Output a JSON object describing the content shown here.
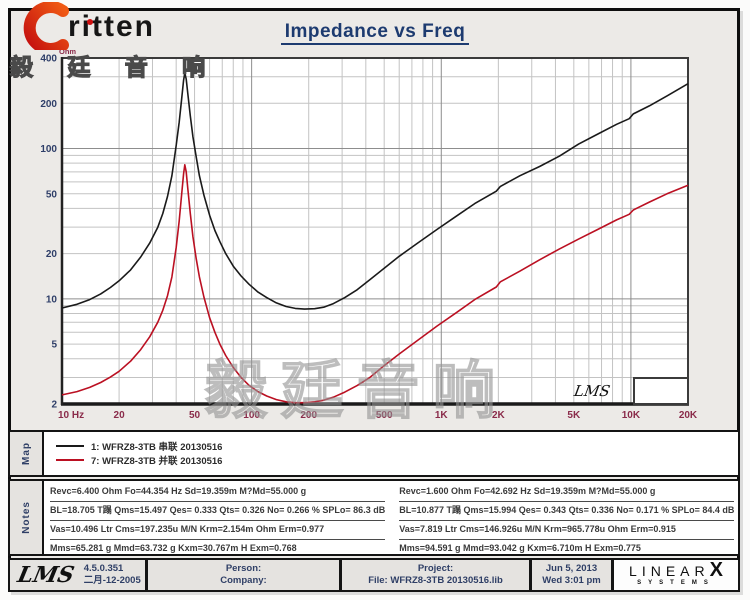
{
  "header": {
    "logo_text": "ritten",
    "logo_cjk": "毅 廷 音 响",
    "title": "Impedance vs Freq"
  },
  "watermark": "毅廷音响",
  "chart_data": {
    "type": "line",
    "x_scale": "log",
    "y_scale": "log",
    "xlim": [
      10,
      20000
    ],
    "ylim": [
      2,
      400
    ],
    "x_unit": "Hz",
    "y_unit": "Ohm",
    "grid": true,
    "inset_label": "LMS",
    "axis_colors": {
      "x": "#8a2b4a",
      "y": "#2e3e68"
    },
    "x_ticks": [
      {
        "f": 10,
        "label": "10 Hz"
      },
      {
        "f": 20,
        "label": "20"
      },
      {
        "f": 50,
        "label": "50"
      },
      {
        "f": 100,
        "label": "100"
      },
      {
        "f": 200,
        "label": "200"
      },
      {
        "f": 500,
        "label": "500"
      },
      {
        "f": 1000,
        "label": "1K"
      },
      {
        "f": 2000,
        "label": "2K"
      },
      {
        "f": 5000,
        "label": "5K"
      },
      {
        "f": 10000,
        "label": "10K"
      },
      {
        "f": 20000,
        "label": "20K"
      }
    ],
    "y_ticks": [
      {
        "v": 400,
        "label": "400"
      },
      {
        "v": 200,
        "label": "200"
      },
      {
        "v": 100,
        "label": "100"
      },
      {
        "v": 50,
        "label": "50"
      },
      {
        "v": 20,
        "label": "20"
      },
      {
        "v": 10,
        "label": "10"
      },
      {
        "v": 5,
        "label": "5"
      },
      {
        "v": 2,
        "label": "2"
      }
    ],
    "series": [
      {
        "name": "1: WFRZ8-3TB 串联 20130516",
        "color": "#1a1a1a",
        "points": [
          [
            10,
            8.7
          ],
          [
            12,
            9.2
          ],
          [
            14,
            9.9
          ],
          [
            16,
            10.8
          ],
          [
            18,
            11.9
          ],
          [
            20,
            13.2
          ],
          [
            23,
            15.6
          ],
          [
            26,
            19
          ],
          [
            29,
            23.5
          ],
          [
            32,
            30
          ],
          [
            34,
            37
          ],
          [
            36,
            48
          ],
          [
            38,
            66
          ],
          [
            40,
            105
          ],
          [
            41.5,
            150
          ],
          [
            42.8,
            215
          ],
          [
            43.8,
            285
          ],
          [
            44.4,
            318
          ],
          [
            45.2,
            290
          ],
          [
            46,
            235
          ],
          [
            47.5,
            165
          ],
          [
            49,
            120
          ],
          [
            51,
            88
          ],
          [
            53,
            66
          ],
          [
            56,
            49
          ],
          [
            60,
            36
          ],
          [
            64,
            28.5
          ],
          [
            68,
            24
          ],
          [
            73,
            20
          ],
          [
            80,
            16.5
          ],
          [
            88,
            14.2
          ],
          [
            97,
            12.5
          ],
          [
            108,
            11.1
          ],
          [
            120,
            10.2
          ],
          [
            135,
            9.4
          ],
          [
            152,
            8.9
          ],
          [
            170,
            8.65
          ],
          [
            190,
            8.55
          ],
          [
            215,
            8.6
          ],
          [
            240,
            8.8
          ],
          [
            270,
            9.3
          ],
          [
            310,
            10.2
          ],
          [
            360,
            11.5
          ],
          [
            420,
            13.4
          ],
          [
            500,
            16
          ],
          [
            600,
            19.2
          ],
          [
            750,
            23.5
          ],
          [
            950,
            29
          ],
          [
            1200,
            35.5
          ],
          [
            1500,
            43
          ],
          [
            1950,
            52
          ],
          [
            2050,
            56
          ],
          [
            2600,
            66
          ],
          [
            3300,
            76
          ],
          [
            4200,
            89
          ],
          [
            5300,
            107
          ],
          [
            6700,
            125
          ],
          [
            8400,
            145
          ],
          [
            9800,
            158
          ],
          [
            10300,
            170
          ],
          [
            12500,
            192
          ],
          [
            15500,
            224
          ],
          [
            20000,
            270
          ]
        ]
      },
      {
        "name": "7: WFRZ8-3TB 并联 20130516",
        "color": "#bb1022",
        "points": [
          [
            10,
            2.3
          ],
          [
            12,
            2.42
          ],
          [
            14,
            2.58
          ],
          [
            16,
            2.78
          ],
          [
            18,
            3.02
          ],
          [
            20,
            3.3
          ],
          [
            23,
            3.85
          ],
          [
            26,
            4.6
          ],
          [
            29,
            5.6
          ],
          [
            32,
            7.0
          ],
          [
            34,
            8.4
          ],
          [
            36,
            10.5
          ],
          [
            38,
            14
          ],
          [
            40,
            22
          ],
          [
            41.5,
            33
          ],
          [
            42.8,
            50
          ],
          [
            43.8,
            68
          ],
          [
            44.4,
            78
          ],
          [
            45.2,
            70
          ],
          [
            46,
            55
          ],
          [
            47.5,
            37
          ],
          [
            49,
            26
          ],
          [
            51,
            18.5
          ],
          [
            53,
            14
          ],
          [
            56,
            10.3
          ],
          [
            60,
            7.5
          ],
          [
            64,
            6.0
          ],
          [
            68,
            5.0
          ],
          [
            73,
            4.2
          ],
          [
            80,
            3.5
          ],
          [
            88,
            3.0
          ],
          [
            97,
            2.66
          ],
          [
            108,
            2.42
          ],
          [
            120,
            2.26
          ],
          [
            135,
            2.14
          ],
          [
            152,
            2.07
          ],
          [
            170,
            2.04
          ],
          [
            190,
            2.04
          ],
          [
            215,
            2.07
          ],
          [
            240,
            2.12
          ],
          [
            270,
            2.22
          ],
          [
            310,
            2.4
          ],
          [
            360,
            2.65
          ],
          [
            420,
            3.0
          ],
          [
            500,
            3.6
          ],
          [
            600,
            4.3
          ],
          [
            750,
            5.3
          ],
          [
            950,
            6.6
          ],
          [
            1200,
            8.1
          ],
          [
            1500,
            9.9
          ],
          [
            1950,
            12
          ],
          [
            2050,
            13
          ],
          [
            2600,
            15.3
          ],
          [
            3300,
            18.2
          ],
          [
            4200,
            21.5
          ],
          [
            5300,
            25
          ],
          [
            6700,
            29
          ],
          [
            8400,
            33.5
          ],
          [
            9800,
            36.5
          ],
          [
            10300,
            39
          ],
          [
            12500,
            44
          ],
          [
            15500,
            50
          ],
          [
            20000,
            57
          ]
        ]
      }
    ],
    "title": "Impedance vs Freq"
  },
  "map": {
    "label": "Map",
    "entries": [
      {
        "label": "1: WFRZ8-3TB 串联 20130516",
        "color": "#1a1a1a"
      },
      {
        "label": "7: WFRZ8-3TB 并联 20130516",
        "color": "#bb1022"
      }
    ]
  },
  "notes": {
    "label": "Notes",
    "left": [
      "Revc=6.400 Ohm  Fo=44.354 Hz  Sd=19.359m M?Md=55.000 g",
      "BL=18.705 T蹋  Qms=15.497  Qes= 0.333  Qts= 0.326  No= 0.266 %  SPLo= 86.3 dB",
      "Vas=10.496 Ltr  Cms=197.235u M/N  Krm=2.154m Ohm  Erm=0.977",
      "Mms=65.281 g  Mmd=63.732 g  Kxm=30.767m H  Exm=0.768"
    ],
    "right": [
      "Revc=1.600 Ohm  Fo=42.692 Hz  Sd=19.359m M?Md=55.000 g",
      "BL=10.877 T蹋  Qms=15.994  Qes= 0.343  Qts= 0.336  No= 0.171 %  SPLo= 84.4 dB",
      "Vas=7.819 Ltr  Cms=146.926u M/N  Krm=965.778u Ohm  Erm=0.915",
      "Mms=94.591 g  Mmd=93.042 g  Kxm=6.710m H  Exm=0.775"
    ]
  },
  "footer": {
    "lms_logo": "LMS",
    "version": "4.5.0.351",
    "version_date": "二月-12-2005",
    "person_label": "Person:",
    "company_label": "Company:",
    "project_label": "Project:",
    "file_text": "File: WFRZ8-3TB  20130516.lib",
    "date": "Jun  5, 2013",
    "time": "Wed  3:01 pm",
    "brand_name": "LINEAR",
    "brand_x": "X",
    "brand_sub": "SYSTEMS"
  }
}
